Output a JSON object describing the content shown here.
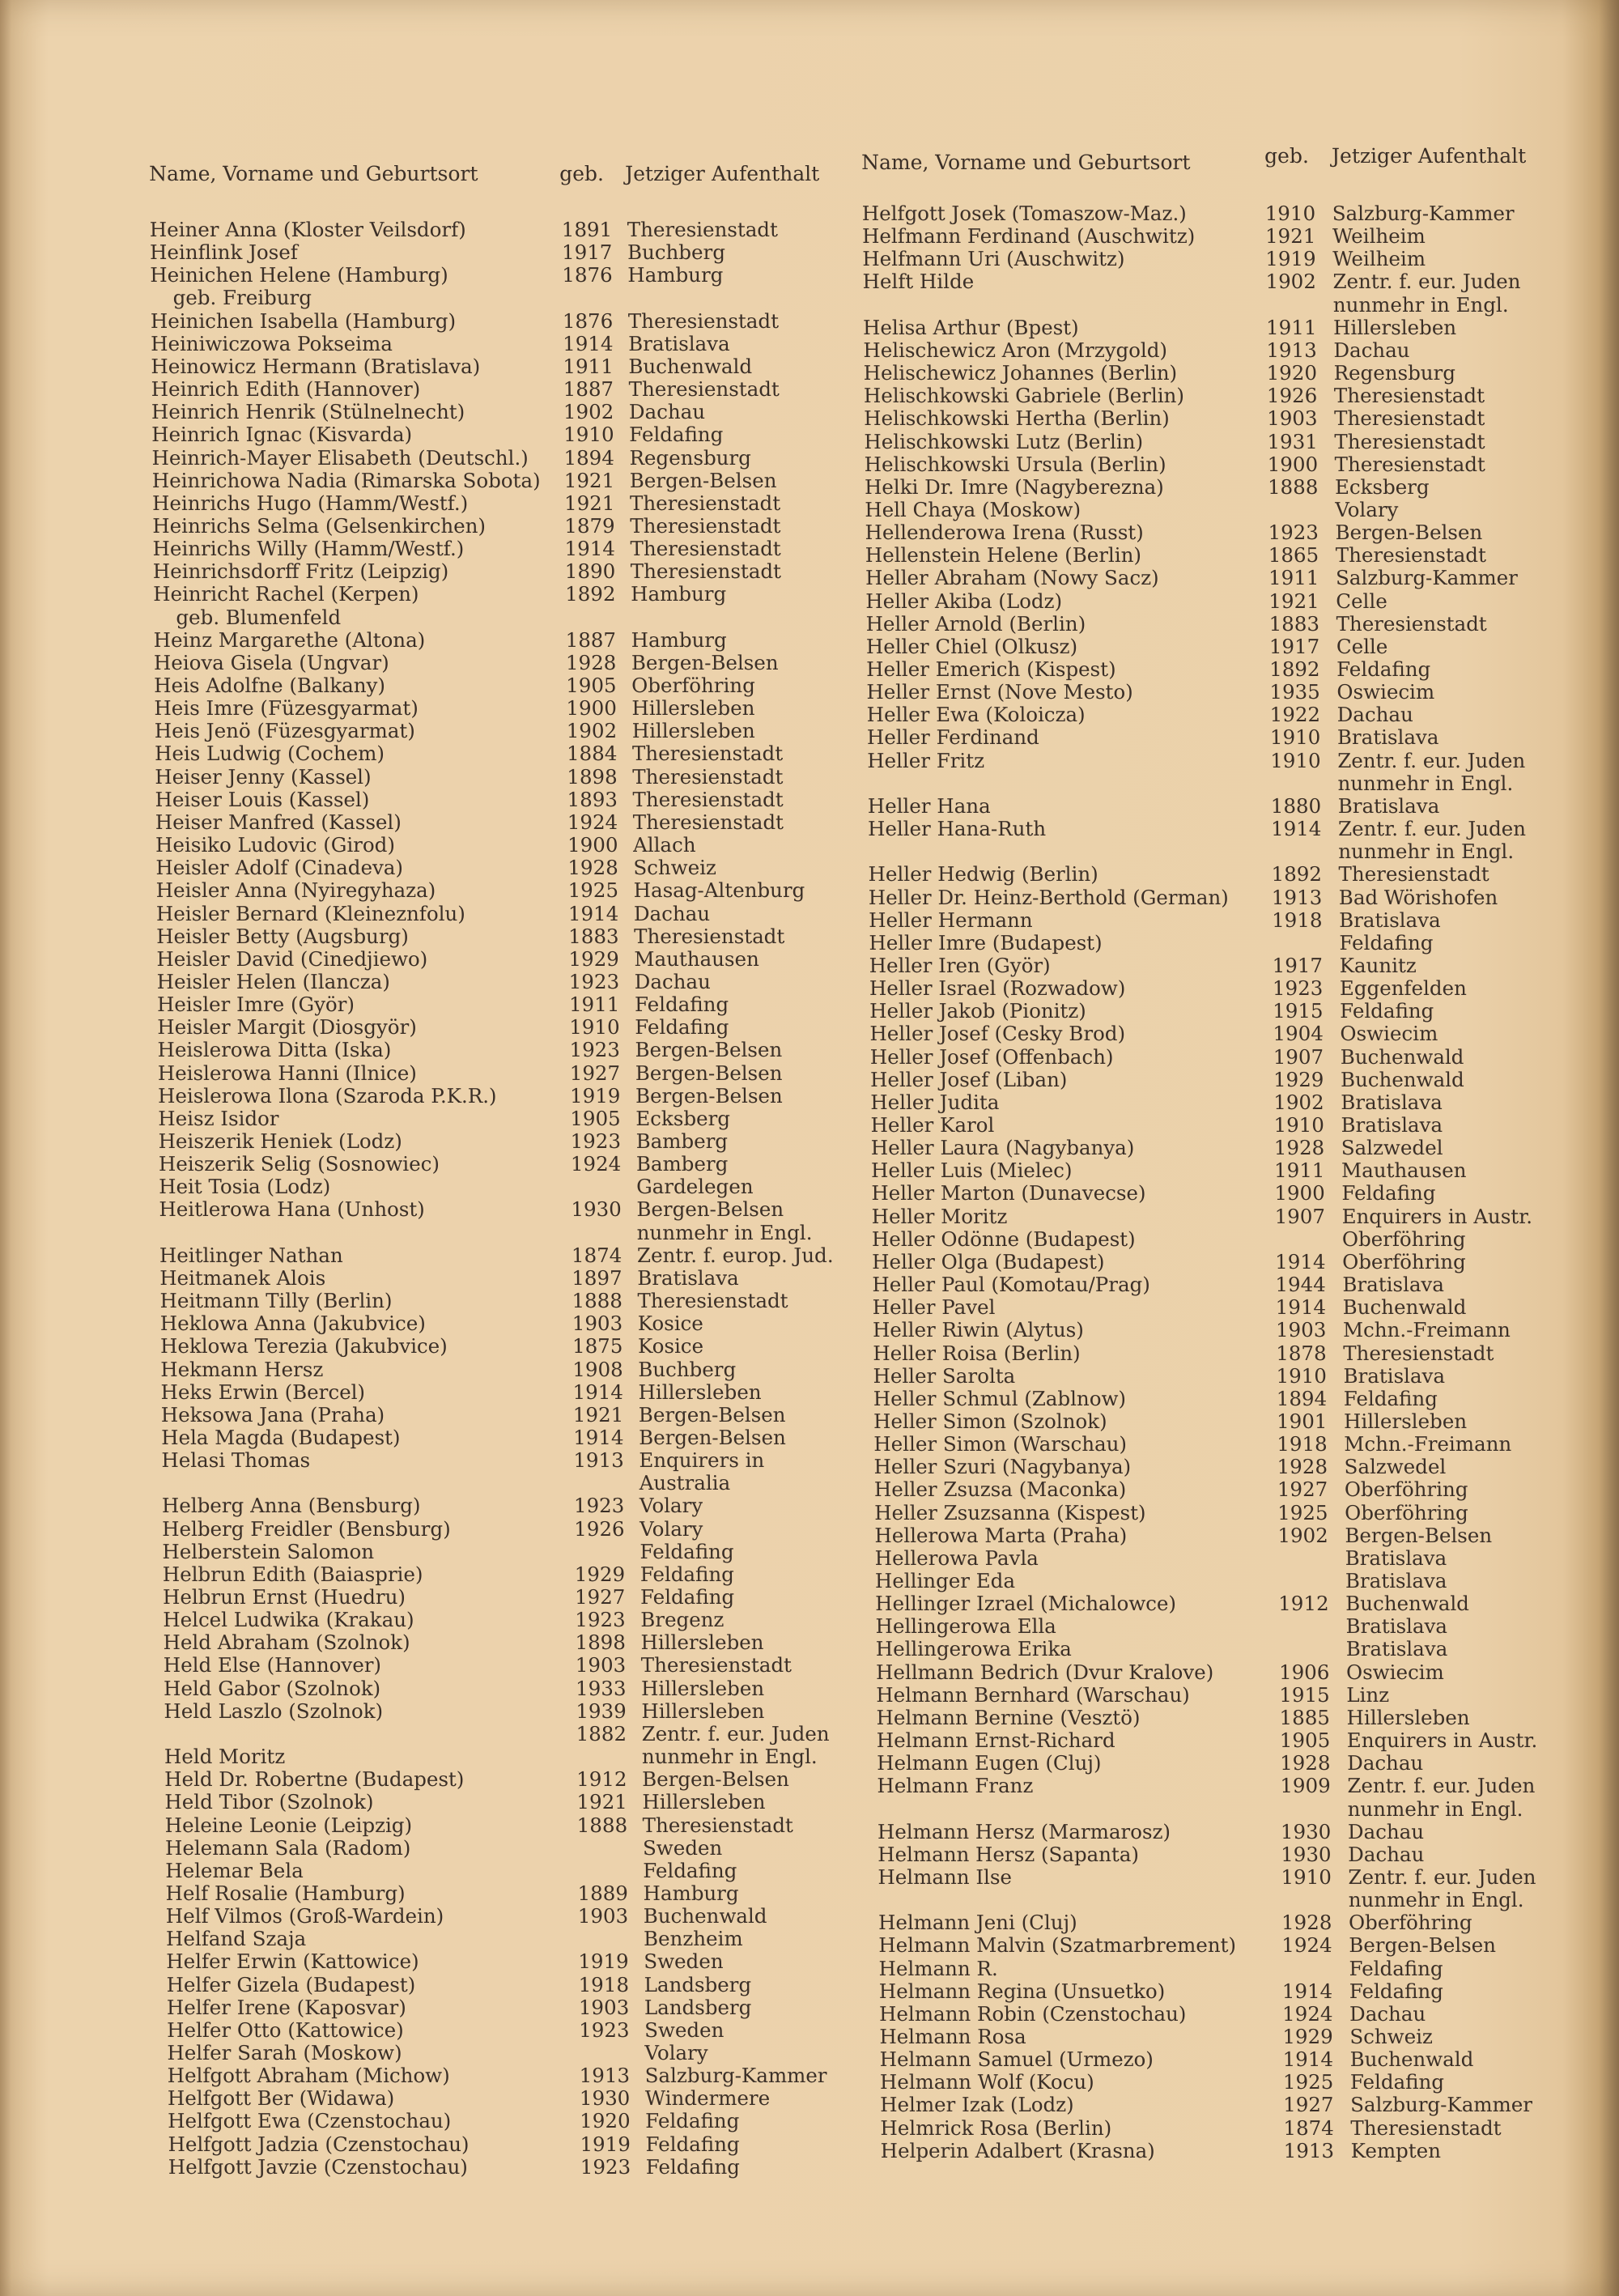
{
  "left": {
    "header": {
      "name": "Name, Vorname und Geburtsort",
      "geb": "geb.",
      "ort": "Jetziger Aufenthalt"
    },
    "rows": [
      {
        "name": "Heiner Anna (Kloster Veilsdorf)",
        "year": "1891",
        "place": "Theresienstadt"
      },
      {
        "name": "Heinflink Josef",
        "year": "1917",
        "place": "Buchberg"
      },
      {
        "name": "Heinichen Helene (Hamburg)",
        "year": "1876",
        "place": "Hamburg"
      },
      {
        "name": "geb. Freiburg",
        "year": "",
        "place": "",
        "cont": true
      },
      {
        "name": "Heinichen Isabella (Hamburg)",
        "year": "1876",
        "place": "Theresienstadt"
      },
      {
        "name": "Heiniwiczowa Pokseima",
        "year": "1914",
        "place": "Bratislava"
      },
      {
        "name": "Heinowicz Hermann (Bratislava)",
        "year": "1911",
        "place": "Buchenwald"
      },
      {
        "name": "Heinrich Edith (Hannover)",
        "year": "1887",
        "place": "Theresienstadt"
      },
      {
        "name": "Heinrich Henrik (Stülnelnecht)",
        "year": "1902",
        "place": "Dachau"
      },
      {
        "name": "Heinrich Ignac (Kisvarda)",
        "year": "1910",
        "place": "Feldafing"
      },
      {
        "name": "Heinrich-Mayer Elisabeth (Deutschl.)",
        "year": "1894",
        "place": "Regensburg"
      },
      {
        "name": "Heinrichowa Nadia (Rimarska Sobota)",
        "year": "1921",
        "place": "Bergen-Belsen"
      },
      {
        "name": "Heinrichs Hugo (Hamm/Westf.)",
        "year": "1921",
        "place": "Theresienstadt"
      },
      {
        "name": "Heinrichs Selma (Gelsenkirchen)",
        "year": "1879",
        "place": "Theresienstadt"
      },
      {
        "name": "Heinrichs Willy (Hamm/Westf.)",
        "year": "1914",
        "place": "Theresienstadt"
      },
      {
        "name": "Heinrichsdorff Fritz (Leipzig)",
        "year": "1890",
        "place": "Theresienstadt"
      },
      {
        "name": "Heinricht Rachel (Kerpen)",
        "year": "1892",
        "place": "Hamburg"
      },
      {
        "name": "geb. Blumenfeld",
        "year": "",
        "place": "",
        "cont": true
      },
      {
        "name": "Heinz Margarethe (Altona)",
        "year": "1887",
        "place": "Hamburg"
      },
      {
        "name": "Heiova Gisela (Ungvar)",
        "year": "1928",
        "place": "Bergen-Belsen"
      },
      {
        "name": "Heis Adolfne (Balkany)",
        "year": "1905",
        "place": "Oberföhring"
      },
      {
        "name": "Heis Imre (Füzesgyarmat)",
        "year": "1900",
        "place": "Hillersleben"
      },
      {
        "name": "Heis Jenö (Füzesgyarmat)",
        "year": "1902",
        "place": "Hillersleben"
      },
      {
        "name": "Heis Ludwig (Cochem)",
        "year": "1884",
        "place": "Theresienstadt"
      },
      {
        "name": "Heiser Jenny (Kassel)",
        "year": "1898",
        "place": "Theresienstadt"
      },
      {
        "name": "Heiser Louis (Kassel)",
        "year": "1893",
        "place": "Theresienstadt"
      },
      {
        "name": "Heiser Manfred (Kassel)",
        "year": "1924",
        "place": "Theresienstadt"
      },
      {
        "name": "Heisiko Ludovic (Girod)",
        "year": "1900",
        "place": "Allach"
      },
      {
        "name": "Heisler Adolf (Cinadeva)",
        "year": "1928",
        "place": "Schweiz"
      },
      {
        "name": "Heisler Anna (Nyiregyhaza)",
        "year": "1925",
        "place": "Hasag-Altenburg"
      },
      {
        "name": "Heisler Bernard (Kleineznfolu)",
        "year": "1914",
        "place": "Dachau"
      },
      {
        "name": "Heisler Betty (Augsburg)",
        "year": "1883",
        "place": "Theresienstadt"
      },
      {
        "name": "Heisler David (Cinedjiewo)",
        "year": "1929",
        "place": "Mauthausen"
      },
      {
        "name": "Heisler Helen (Ilancza)",
        "year": "1923",
        "place": "Dachau"
      },
      {
        "name": "Heisler Imre (Györ)",
        "year": "1911",
        "place": "Feldafing"
      },
      {
        "name": "Heisler Margit (Diosgyör)",
        "year": "1910",
        "place": "Feldafing"
      },
      {
        "name": "Heislerowa Ditta (Iska)",
        "year": "1923",
        "place": "Bergen-Belsen"
      },
      {
        "name": "Heislerowa Hanni (Ilnice)",
        "year": "1927",
        "place": "Bergen-Belsen"
      },
      {
        "name": "Heislerowa Ilona (Szaroda P.K.R.)",
        "year": "1919",
        "place": "Bergen-Belsen"
      },
      {
        "name": "Heisz Isidor",
        "year": "1905",
        "place": "Ecksberg"
      },
      {
        "name": "Heiszerik Heniek (Lodz)",
        "year": "1923",
        "place": "Bamberg"
      },
      {
        "name": "Heiszerik Selig (Sosnowiec)",
        "year": "1924",
        "place": "Bamberg"
      },
      {
        "name": "Heit Tosia (Lodz)",
        "year": "",
        "place": "Gardelegen"
      },
      {
        "name": "Heitlerowa Hana (Unhost)",
        "year": "1930",
        "place": "Bergen-Belsen"
      },
      {
        "name": "",
        "year": "",
        "place": "nunmehr in Engl."
      },
      {
        "name": "Heitlinger Nathan",
        "year": "1874",
        "place": "Zentr. f. europ. Jud."
      },
      {
        "name": "Heitmanek Alois",
        "year": "1897",
        "place": "Bratislava"
      },
      {
        "name": "Heitmann Tilly (Berlin)",
        "year": "1888",
        "place": "Theresienstadt"
      },
      {
        "name": "Heklowa Anna (Jakubvice)",
        "year": "1903",
        "place": "Kosice"
      },
      {
        "name": "Heklowa Terezia (Jakubvice)",
        "year": "1875",
        "place": "Kosice"
      },
      {
        "name": "Hekmann Hersz",
        "year": "1908",
        "place": "Buchberg"
      },
      {
        "name": "Heks Erwin (Bercel)",
        "year": "1914",
        "place": "Hillersleben"
      },
      {
        "name": "Heksowa Jana (Praha)",
        "year": "1921",
        "place": "Bergen-Belsen"
      },
      {
        "name": "Hela Magda (Budapest)",
        "year": "1914",
        "place": "Bergen-Belsen"
      },
      {
        "name": "Helasi Thomas",
        "year": "1913",
        "place": "Enquirers in"
      },
      {
        "name": "",
        "year": "",
        "place": "Australia"
      },
      {
        "name": "Helberg Anna (Bensburg)",
        "year": "1923",
        "place": "Volary"
      },
      {
        "name": "Helberg Freidler (Bensburg)",
        "year": "1926",
        "place": "Volary"
      },
      {
        "name": "Helberstein Salomon",
        "year": "",
        "place": "Feldafing"
      },
      {
        "name": "Helbrun Edith (Baiasprie)",
        "year": "1929",
        "place": "Feldafing"
      },
      {
        "name": "Helbrun Ernst (Huedru)",
        "year": "1927",
        "place": "Feldafing"
      },
      {
        "name": "Helcel Ludwika (Krakau)",
        "year": "1923",
        "place": "Bregenz"
      },
      {
        "name": "Held Abraham (Szolnok)",
        "year": "1898",
        "place": "Hillersleben"
      },
      {
        "name": "Held Else (Hannover)",
        "year": "1903",
        "place": "Theresienstadt"
      },
      {
        "name": "Held Gabor (Szolnok)",
        "year": "1933",
        "place": "Hillersleben"
      },
      {
        "name": "Held Laszlo (Szolnok)",
        "year": "1939",
        "place": "Hillersleben"
      },
      {
        "name": "",
        "year": "1882",
        "place": "Zentr. f. eur. Juden"
      },
      {
        "name": "Held Moritz",
        "year": "",
        "place": "nunmehr in Engl."
      },
      {
        "name": "Held Dr. Robertne (Budapest)",
        "year": "1912",
        "place": "Bergen-Belsen"
      },
      {
        "name": "Held Tibor (Szolnok)",
        "year": "1921",
        "place": "Hillersleben"
      },
      {
        "name": "Heleine Leonie (Leipzig)",
        "year": "1888",
        "place": "Theresienstadt"
      },
      {
        "name": "Helemann Sala (Radom)",
        "year": "",
        "place": "Sweden"
      },
      {
        "name": "Helemar Bela",
        "year": "",
        "place": "Feldafing"
      },
      {
        "name": "Helf Rosalie (Hamburg)",
        "year": "1889",
        "place": "Hamburg"
      },
      {
        "name": "Helf Vilmos (Groß-Wardein)",
        "year": "1903",
        "place": "Buchenwald"
      },
      {
        "name": "Helfand Szaja",
        "year": "",
        "place": "Benzheim"
      },
      {
        "name": "Helfer Erwin (Kattowice)",
        "year": "1919",
        "place": "Sweden"
      },
      {
        "name": "Helfer Gizela (Budapest)",
        "year": "1918",
        "place": "Landsberg"
      },
      {
        "name": "Helfer Irene (Kaposvar)",
        "year": "1903",
        "place": "Landsberg"
      },
      {
        "name": "Helfer Otto (Kattowice)",
        "year": "1923",
        "place": "Sweden"
      },
      {
        "name": "Helfer Sarah (Moskow)",
        "year": "",
        "place": "Volary"
      },
      {
        "name": "Helfgott Abraham (Michow)",
        "year": "1913",
        "place": "Salzburg-Kammer"
      },
      {
        "name": "Helfgott Ber (Widawa)",
        "year": "1930",
        "place": "Windermere"
      },
      {
        "name": "Helfgott Ewa (Czenstochau)",
        "year": "1920",
        "place": "Feldafing"
      },
      {
        "name": "Helfgott Jadzia (Czenstochau)",
        "year": "1919",
        "place": "Feldafing"
      },
      {
        "name": "Helfgott Javzie (Czenstochau)",
        "year": "1923",
        "place": "Feldafing"
      }
    ]
  },
  "right": {
    "header": {
      "name": "Name, Vorname und Geburtsort",
      "geb": "geb.",
      "ort": "Jetziger Aufenthalt"
    },
    "rows": [
      {
        "name": "Helfgott Josek (Tomaszow-Maz.)",
        "year": "1910",
        "place": "Salzburg-Kammer"
      },
      {
        "name": "Helfmann Ferdinand (Auschwitz)",
        "year": "1921",
        "place": "Weilheim"
      },
      {
        "name": "Helfmann Uri (Auschwitz)",
        "year": "1919",
        "place": "Weilheim"
      },
      {
        "name": "Helft Hilde",
        "year": "1902",
        "place": "Zentr. f. eur. Juden"
      },
      {
        "name": "",
        "year": "",
        "place": "nunmehr in Engl."
      },
      {
        "name": "Helisa Arthur (Bpest)",
        "year": "1911",
        "place": "Hillersleben"
      },
      {
        "name": "Helischewicz Aron (Mrzygold)",
        "year": "1913",
        "place": "Dachau"
      },
      {
        "name": "Helischewicz Johannes (Berlin)",
        "year": "1920",
        "place": "Regensburg"
      },
      {
        "name": "Helischkowski Gabriele (Berlin)",
        "year": "1926",
        "place": "Theresienstadt"
      },
      {
        "name": "Helischkowski Hertha (Berlin)",
        "year": "1903",
        "place": "Theresienstadt"
      },
      {
        "name": "Helischkowski Lutz (Berlin)",
        "year": "1931",
        "place": "Theresienstadt"
      },
      {
        "name": "Helischkowski Ursula (Berlin)",
        "year": "1900",
        "place": "Theresienstadt"
      },
      {
        "name": "Helki Dr. Imre (Nagyberezna)",
        "year": "1888",
        "place": "Ecksberg"
      },
      {
        "name": "Hell Chaya (Moskow)",
        "year": "",
        "place": "Volary"
      },
      {
        "name": "Hellenderowa Irena (Russt)",
        "year": "1923",
        "place": "Bergen-Belsen"
      },
      {
        "name": "Hellenstein Helene (Berlin)",
        "year": "1865",
        "place": "Theresienstadt"
      },
      {
        "name": "Heller Abraham (Nowy Sacz)",
        "year": "1911",
        "place": "Salzburg-Kammer"
      },
      {
        "name": "Heller Akiba (Lodz)",
        "year": "1921",
        "place": "Celle"
      },
      {
        "name": "Heller Arnold (Berlin)",
        "year": "1883",
        "place": "Theresienstadt"
      },
      {
        "name": "Heller Chiel (Olkusz)",
        "year": "1917",
        "place": "Celle"
      },
      {
        "name": "Heller Emerich (Kispest)",
        "year": "1892",
        "place": "Feldafing"
      },
      {
        "name": "Heller Ernst (Nove Mesto)",
        "year": "1935",
        "place": "Oswiecim"
      },
      {
        "name": "Heller Ewa (Koloicza)",
        "year": "1922",
        "place": "Dachau"
      },
      {
        "name": "Heller Ferdinand",
        "year": "1910",
        "place": "Bratislava"
      },
      {
        "name": "Heller Fritz",
        "year": "1910",
        "place": "Zentr. f. eur. Juden"
      },
      {
        "name": "",
        "year": "",
        "place": "nunmehr in Engl."
      },
      {
        "name": "Heller Hana",
        "year": "1880",
        "place": "Bratislava"
      },
      {
        "name": "Heller Hana-Ruth",
        "year": "1914",
        "place": "Zentr. f. eur. Juden"
      },
      {
        "name": "",
        "year": "",
        "place": "nunmehr in Engl."
      },
      {
        "name": "Heller Hedwig (Berlin)",
        "year": "1892",
        "place": "Theresienstadt"
      },
      {
        "name": "Heller Dr. Heinz-Berthold (German)",
        "year": "1913",
        "place": "Bad Wörishofen"
      },
      {
        "name": "Heller Hermann",
        "year": "1918",
        "place": "Bratislava"
      },
      {
        "name": "Heller Imre (Budapest)",
        "year": "",
        "place": "Feldafing"
      },
      {
        "name": "Heller Iren (Györ)",
        "year": "1917",
        "place": "Kaunitz"
      },
      {
        "name": "Heller Israel (Rozwadow)",
        "year": "1923",
        "place": "Eggenfelden"
      },
      {
        "name": "Heller Jakob (Pionitz)",
        "year": "1915",
        "place": "Feldafing"
      },
      {
        "name": "Heller Josef (Cesky Brod)",
        "year": "1904",
        "place": "Oswiecim"
      },
      {
        "name": "Heller Josef (Offenbach)",
        "year": "1907",
        "place": "Buchenwald"
      },
      {
        "name": "Heller Josef (Liban)",
        "year": "1929",
        "place": "Buchenwald"
      },
      {
        "name": "Heller Judita",
        "year": "1902",
        "place": "Bratislava"
      },
      {
        "name": "Heller Karol",
        "year": "1910",
        "place": "Bratislava"
      },
      {
        "name": "Heller Laura (Nagybanya)",
        "year": "1928",
        "place": "Salzwedel"
      },
      {
        "name": "Heller Luis (Mielec)",
        "year": "1911",
        "place": "Mauthausen"
      },
      {
        "name": "Heller Marton (Dunavecse)",
        "year": "1900",
        "place": "Feldafing"
      },
      {
        "name": "Heller Moritz",
        "year": "1907",
        "place": "Enquirers in Austr."
      },
      {
        "name": "Heller Odönne (Budapest)",
        "year": "",
        "place": "Oberföhring"
      },
      {
        "name": "Heller Olga (Budapest)",
        "year": "1914",
        "place": "Oberföhring"
      },
      {
        "name": "Heller Paul (Komotau/Prag)",
        "year": "1944",
        "place": "Bratislava"
      },
      {
        "name": "Heller Pavel",
        "year": "1914",
        "place": "Buchenwald"
      },
      {
        "name": "Heller Riwin (Alytus)",
        "year": "1903",
        "place": "Mchn.-Freimann"
      },
      {
        "name": "Heller Roisa (Berlin)",
        "year": "1878",
        "place": "Theresienstadt"
      },
      {
        "name": "Heller Sarolta",
        "year": "1910",
        "place": "Bratislava"
      },
      {
        "name": "Heller Schmul (Zablnow)",
        "year": "1894",
        "place": "Feldafing"
      },
      {
        "name": "Heller Simon (Szolnok)",
        "year": "1901",
        "place": "Hillersleben"
      },
      {
        "name": "Heller Simon (Warschau)",
        "year": "1918",
        "place": "Mchn.-Freimann"
      },
      {
        "name": "Heller Szuri (Nagybanya)",
        "year": "1928",
        "place": "Salzwedel"
      },
      {
        "name": "Heller Zsuzsa (Maconka)",
        "year": "1927",
        "place": "Oberföhring"
      },
      {
        "name": "Heller Zsuzsanna (Kispest)",
        "year": "1925",
        "place": "Oberföhring"
      },
      {
        "name": "Hellerowa Marta (Praha)",
        "year": "1902",
        "place": "Bergen-Belsen"
      },
      {
        "name": "Hellerowa Pavla",
        "year": "",
        "place": "Bratislava"
      },
      {
        "name": "Hellinger Eda",
        "year": "",
        "place": "Bratislava"
      },
      {
        "name": "Hellinger Izrael (Michalowce)",
        "year": "1912",
        "place": "Buchenwald"
      },
      {
        "name": "Hellingerowa Ella",
        "year": "",
        "place": "Bratislava"
      },
      {
        "name": "Hellingerowa Erika",
        "year": "",
        "place": "Bratislava"
      },
      {
        "name": "Hellmann Bedrich (Dvur Kralove)",
        "year": "1906",
        "place": "Oswiecim"
      },
      {
        "name": "Helmann Bernhard (Warschau)",
        "year": "1915",
        "place": "Linz"
      },
      {
        "name": "Helmann Bernine (Vesztö)",
        "year": "1885",
        "place": "Hillersleben"
      },
      {
        "name": "Helmann Ernst-Richard",
        "year": "1905",
        "place": "Enquirers in Austr."
      },
      {
        "name": "Helmann Eugen (Cluj)",
        "year": "1928",
        "place": "Dachau"
      },
      {
        "name": "Helmann Franz",
        "year": "1909",
        "place": "Zentr. f. eur. Juden"
      },
      {
        "name": "",
        "year": "",
        "place": "nunmehr in Engl."
      },
      {
        "name": "Helmann Hersz (Marmarosz)",
        "year": "1930",
        "place": "Dachau"
      },
      {
        "name": "Helmann Hersz (Sapanta)",
        "year": "1930",
        "place": "Dachau"
      },
      {
        "name": "Helmann Ilse",
        "year": "1910",
        "place": "Zentr. f. eur. Juden"
      },
      {
        "name": "",
        "year": "",
        "place": "nunmehr in Engl."
      },
      {
        "name": "Helmann Jeni (Cluj)",
        "year": "1928",
        "place": "Oberföhring"
      },
      {
        "name": "Helmann Malvin (Szatmarbrement)",
        "year": "1924",
        "place": "Bergen-Belsen"
      },
      {
        "name": "Helmann R.",
        "year": "",
        "place": "Feldafing"
      },
      {
        "name": "Helmann Regina (Unsuetko)",
        "year": "1914",
        "place": "Feldafing"
      },
      {
        "name": "Helmann Robin (Czenstochau)",
        "year": "1924",
        "place": "Dachau"
      },
      {
        "name": "Helmann Rosa",
        "year": "1929",
        "place": "Schweiz"
      },
      {
        "name": "Helmann Samuel (Urmezo)",
        "year": "1914",
        "place": "Buchenwald"
      },
      {
        "name": "Helmann Wolf (Kocu)",
        "year": "1925",
        "place": "Feldafing"
      },
      {
        "name": "Helmer Izak (Lodz)",
        "year": "1927",
        "place": "Salzburg-Kammer"
      },
      {
        "name": "Helmrick Rosa (Berlin)",
        "year": "1874",
        "place": "Theresienstadt"
      },
      {
        "name": "Helperin Adalbert (Krasna)",
        "year": "1913",
        "place": "Kempten"
      }
    ]
  }
}
